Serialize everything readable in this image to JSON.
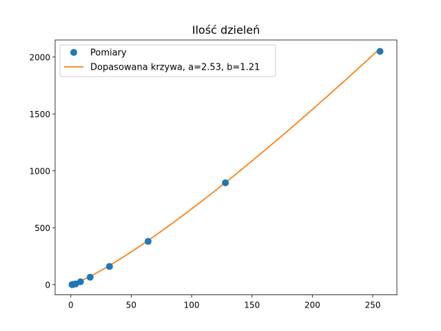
{
  "chart_data": {
    "type": "scatter",
    "title": "Ilość dzieleń",
    "xlabel": "",
    "ylabel": "",
    "xlim": [
      -13,
      270
    ],
    "ylim": [
      -90,
      2150
    ],
    "xticks": [
      0,
      50,
      100,
      150,
      200,
      250
    ],
    "yticks": [
      0,
      500,
      1000,
      1500,
      2000
    ],
    "grid": false,
    "legend_position": "upper left",
    "series": [
      {
        "name": "Pomiary",
        "kind": "markers",
        "color": "#1f77b4",
        "points": [
          {
            "x": 1,
            "y": 0
          },
          {
            "x": 2,
            "y": 2
          },
          {
            "x": 4,
            "y": 6
          },
          {
            "x": 8,
            "y": 25
          },
          {
            "x": 16,
            "y": 65
          },
          {
            "x": 32,
            "y": 160
          },
          {
            "x": 64,
            "y": 380
          },
          {
            "x": 128,
            "y": 895
          },
          {
            "x": 256,
            "y": 2050
          }
        ]
      },
      {
        "name": "Dopasowana krzywa, a=2.53, b=1.21",
        "kind": "line",
        "color": "#ff7f0e",
        "function": "a*x^b",
        "a": 2.53,
        "b": 1.21,
        "x_range": [
          1,
          256
        ]
      }
    ]
  }
}
